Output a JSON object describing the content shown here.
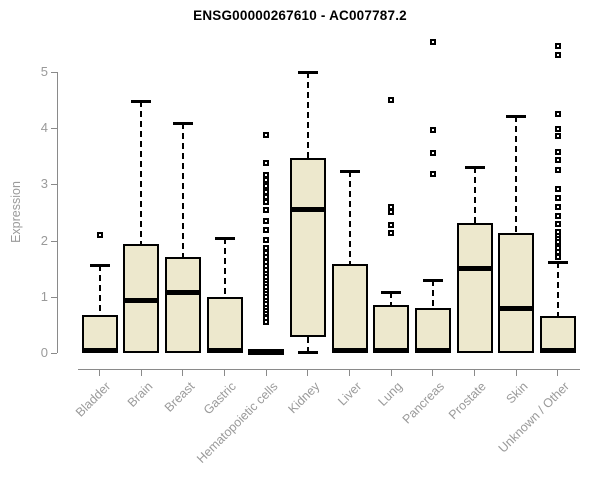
{
  "chart_data": {
    "type": "boxplot",
    "title": "ENSG00000267610 - AC007787.2",
    "ylabel": "Expression",
    "xlabel": "",
    "ylim": [
      0,
      5
    ],
    "yticks": [
      0,
      1,
      2,
      3,
      4,
      5
    ],
    "legend": "none",
    "grid": false,
    "categories": [
      "Bladder",
      "Brain",
      "Breast",
      "Gastric",
      "Hematopoietic cells",
      "Kidney",
      "Liver",
      "Lung",
      "Pancreas",
      "Prostate",
      "Skin",
      "Unknown / Other"
    ],
    "boxes": [
      {
        "category": "Bladder",
        "whisker_low": 0,
        "q1": 0,
        "median": 0.04,
        "q3": 0.68,
        "whisker_high": 1.57,
        "outliers": [
          2.1
        ]
      },
      {
        "category": "Brain",
        "whisker_low": 0,
        "q1": 0,
        "median": 0.93,
        "q3": 1.93,
        "whisker_high": 4.48,
        "outliers": []
      },
      {
        "category": "Breast",
        "whisker_low": 0,
        "q1": 0,
        "median": 1.07,
        "q3": 1.7,
        "whisker_high": 4.09,
        "outliers": []
      },
      {
        "category": "Gastric",
        "whisker_low": 0,
        "q1": 0,
        "median": 0.04,
        "q3": 1.0,
        "whisker_high": 2.04,
        "outliers": []
      },
      {
        "category": "Hematopoietic cells",
        "whisker_low": 0,
        "q1": 0,
        "median": 0.02,
        "q3": 0.04,
        "whisker_high": 0.04,
        "outliers": [
          0.56,
          0.62,
          0.71,
          0.76,
          0.82,
          0.88,
          0.94,
          1.0,
          1.06,
          1.12,
          1.18,
          1.24,
          1.3,
          1.36,
          1.42,
          1.48,
          1.55,
          1.62,
          1.71,
          1.78,
          1.87,
          2.01,
          2.19,
          2.34,
          2.54,
          2.69,
          2.77,
          2.87,
          2.97,
          3.08,
          3.17,
          3.37,
          3.87
        ]
      },
      {
        "category": "Kidney",
        "whisker_low": 0,
        "q1": 0.29,
        "median": 2.55,
        "q3": 3.47,
        "whisker_high": 5.0,
        "outliers": []
      },
      {
        "category": "Liver",
        "whisker_low": 0,
        "q1": 0,
        "median": 0.04,
        "q3": 1.58,
        "whisker_high": 3.23,
        "outliers": []
      },
      {
        "category": "Lung",
        "whisker_low": 0,
        "q1": 0,
        "median": 0.04,
        "q3": 0.85,
        "whisker_high": 1.09,
        "outliers": [
          2.13,
          2.28,
          2.51,
          2.6,
          4.5
        ]
      },
      {
        "category": "Pancreas",
        "whisker_low": 0,
        "q1": 0,
        "median": 0.04,
        "q3": 0.8,
        "whisker_high": 1.3,
        "outliers": [
          3.18,
          3.55,
          3.97,
          5.53
        ]
      },
      {
        "category": "Prostate",
        "whisker_low": 0,
        "q1": 0,
        "median": 1.5,
        "q3": 2.32,
        "whisker_high": 3.31,
        "outliers": []
      },
      {
        "category": "Skin",
        "whisker_low": 0,
        "q1": 0,
        "median": 0.8,
        "q3": 2.14,
        "whisker_high": 4.21,
        "outliers": []
      },
      {
        "category": "Unknown / Other",
        "whisker_low": 0,
        "q1": 0,
        "median": 0.04,
        "q3": 0.65,
        "whisker_high": 1.62,
        "outliers": [
          1.71,
          1.79,
          1.86,
          1.98,
          2.05,
          2.1,
          2.16,
          2.29,
          2.43,
          2.6,
          2.75,
          2.92,
          3.26,
          3.43,
          3.58,
          3.85,
          3.98,
          4.25,
          5.3,
          5.45
        ]
      }
    ],
    "colors": {
      "box_fill": "#ede8cd",
      "box_border": "#000000",
      "median": "#000000",
      "whisker": "#000000",
      "axis": "#8a8a8a",
      "tick_label": "#9a9a9a",
      "title": "#000000",
      "background": "#ffffff"
    }
  }
}
